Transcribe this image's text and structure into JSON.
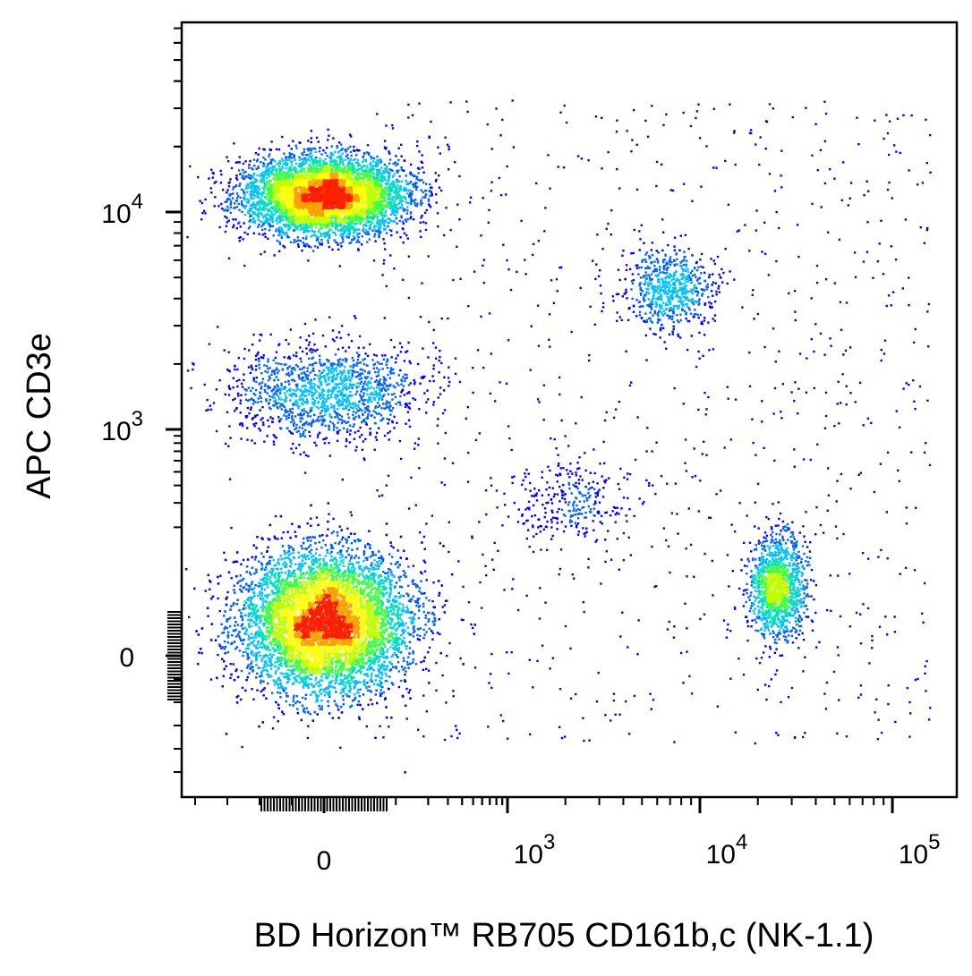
{
  "chart_data": {
    "type": "scatter",
    "title": "",
    "xlabel": "BD Horizon™ RB705  CD161b,c (NK-1.1)",
    "ylabel": "APC CD3e",
    "x_scale": "biexponential",
    "y_scale": "biexponential",
    "xlim": [
      -300,
      200000
    ],
    "ylim": [
      -300,
      70000
    ],
    "x_ticks": [
      {
        "base": "0",
        "exp": ""
      },
      {
        "base": "10",
        "exp": "3"
      },
      {
        "base": "10",
        "exp": "4"
      },
      {
        "base": "10",
        "exp": "5"
      }
    ],
    "y_ticks": [
      {
        "base": "0",
        "exp": ""
      },
      {
        "base": "10",
        "exp": "3"
      },
      {
        "base": "10",
        "exp": "4"
      }
    ],
    "grid": false,
    "colormap": [
      "#0000ff",
      "#0060ff",
      "#00c0ff",
      "#00e0c0",
      "#40ff40",
      "#c0ff00",
      "#ffff00",
      "#ffa000",
      "#ff2000"
    ],
    "series": [
      {
        "center": [
          0,
          30
        ],
        "spread": [
          110,
          90
        ],
        "count": 9000
      },
      {
        "center": [
          0,
          12000
        ],
        "spread": [
          105,
          5500
        ],
        "count": 5200
      },
      {
        "center": [
          0,
          1500
        ],
        "spread": [
          140,
          900
        ],
        "count": 1400
      },
      {
        "center": [
          25000,
          70
        ],
        "spread": [
          9000,
          90
        ],
        "count": 1300
      },
      {
        "center": [
          7000,
          4500
        ],
        "spread": [
          4500,
          2000
        ],
        "count": 650
      },
      {
        "center": [
          2000,
          300
        ],
        "spread": [
          1800,
          250
        ],
        "count": 260
      }
    ]
  }
}
